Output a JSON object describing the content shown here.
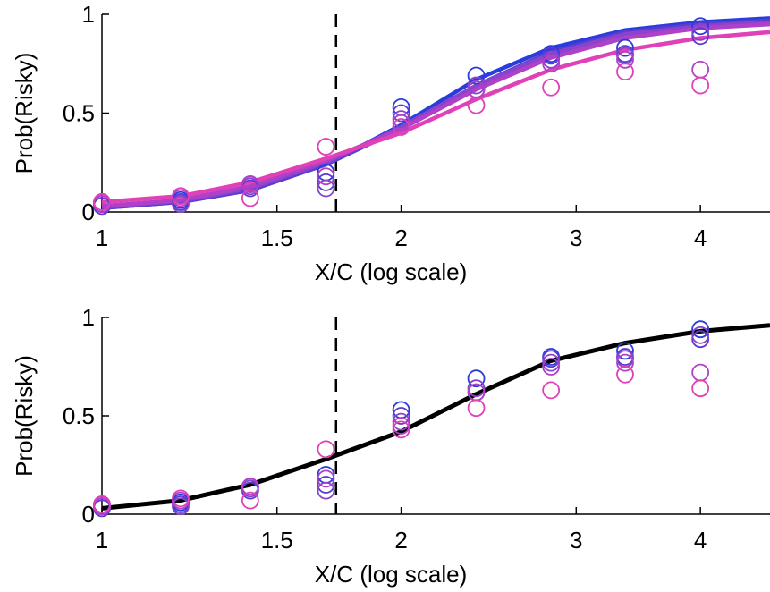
{
  "chart_data": [
    {
      "type": "scatter",
      "xlabel": "X/C (log scale)",
      "ylabel": "Prob(Risky)",
      "x_scale": "log",
      "xlim": [
        1,
        4.7
      ],
      "ylim": [
        0,
        1
      ],
      "xticks": [
        1,
        1.5,
        2,
        3,
        4
      ],
      "xtick_labels": [
        "1",
        "1.5",
        "2",
        "3",
        "4"
      ],
      "yticks": [
        0,
        0.5,
        1
      ],
      "ytick_labels": [
        "0",
        "0.5",
        "1"
      ],
      "grid": false,
      "reference_line": {
        "x": 1.72,
        "style": "dashed",
        "color": "#000000"
      },
      "series": [
        {
          "color": "#2a3cdc",
          "points": [
            [
              1,
              0.04
            ],
            [
              1.2,
              0.06
            ],
            [
              1.41,
              0.14
            ],
            [
              1.68,
              0.2
            ],
            [
              2,
              0.53
            ],
            [
              2.38,
              0.69
            ],
            [
              2.83,
              0.8
            ],
            [
              3.36,
              0.83
            ],
            [
              4,
              0.94
            ]
          ],
          "fit": [
            [
              1,
              0.02
            ],
            [
              1.2,
              0.05
            ],
            [
              1.41,
              0.11
            ],
            [
              1.68,
              0.24
            ],
            [
              2,
              0.44
            ],
            [
              2.38,
              0.67
            ],
            [
              2.83,
              0.83
            ],
            [
              3.36,
              0.92
            ],
            [
              4,
              0.96
            ],
            [
              4.7,
              0.98
            ]
          ]
        },
        {
          "color": "#5a3cd2",
          "points": [
            [
              1,
              0.03
            ],
            [
              1.2,
              0.05
            ],
            [
              1.41,
              0.12
            ],
            [
              1.68,
              0.15
            ],
            [
              2,
              0.5
            ],
            [
              2.38,
              0.62
            ],
            [
              2.83,
              0.79
            ],
            [
              3.36,
              0.8
            ],
            [
              4,
              0.89
            ]
          ],
          "fit": [
            [
              1,
              0.02
            ],
            [
              1.2,
              0.05
            ],
            [
              1.41,
              0.11
            ],
            [
              1.68,
              0.24
            ],
            [
              2,
              0.42
            ],
            [
              2.38,
              0.64
            ],
            [
              2.83,
              0.81
            ],
            [
              3.36,
              0.91
            ],
            [
              4,
              0.95
            ],
            [
              4.7,
              0.97
            ]
          ]
        },
        {
          "color": "#8844cc",
          "points": [
            [
              1,
              0.05
            ],
            [
              1.2,
              0.04
            ],
            [
              1.41,
              0.13
            ],
            [
              1.68,
              0.12
            ],
            [
              2,
              0.47
            ],
            [
              2.38,
              0.64
            ],
            [
              2.83,
              0.77
            ],
            [
              3.36,
              0.79
            ],
            [
              4,
              0.91
            ]
          ],
          "fit": [
            [
              1,
              0.025
            ],
            [
              1.2,
              0.055
            ],
            [
              1.41,
              0.12
            ],
            [
              1.68,
              0.25
            ],
            [
              2,
              0.43
            ],
            [
              2.38,
              0.64
            ],
            [
              2.83,
              0.8
            ],
            [
              3.36,
              0.9
            ],
            [
              4,
              0.94
            ],
            [
              4.7,
              0.96
            ]
          ]
        },
        {
          "color": "#b040c8",
          "points": [
            [
              1,
              0.04
            ],
            [
              1.2,
              0.07
            ],
            [
              1.41,
              0.14
            ],
            [
              1.68,
              0.18
            ],
            [
              2,
              0.45
            ],
            [
              2.38,
              0.62
            ],
            [
              2.83,
              0.75
            ],
            [
              3.36,
              0.77
            ],
            [
              4,
              0.72
            ]
          ],
          "fit": [
            [
              1,
              0.03
            ],
            [
              1.2,
              0.06
            ],
            [
              1.41,
              0.13
            ],
            [
              1.68,
              0.26
            ],
            [
              2,
              0.42
            ],
            [
              2.38,
              0.62
            ],
            [
              2.83,
              0.78
            ],
            [
              3.36,
              0.88
            ],
            [
              4,
              0.93
            ],
            [
              4.7,
              0.95
            ]
          ]
        },
        {
          "color": "#e040b8",
          "points": [
            [
              1,
              0.05
            ],
            [
              1.2,
              0.08
            ],
            [
              1.41,
              0.07
            ],
            [
              1.68,
              0.33
            ],
            [
              2,
              0.43
            ],
            [
              2.38,
              0.54
            ],
            [
              2.83,
              0.63
            ],
            [
              3.36,
              0.71
            ],
            [
              4,
              0.64
            ]
          ],
          "fit": [
            [
              1,
              0.05
            ],
            [
              1.2,
              0.08
            ],
            [
              1.41,
              0.15
            ],
            [
              1.68,
              0.27
            ],
            [
              2,
              0.4
            ],
            [
              2.38,
              0.57
            ],
            [
              2.83,
              0.72
            ],
            [
              3.36,
              0.82
            ],
            [
              4,
              0.88
            ],
            [
              4.7,
              0.91
            ]
          ]
        }
      ]
    },
    {
      "type": "scatter",
      "xlabel": "X/C (log scale)",
      "ylabel": "Prob(Risky)",
      "x_scale": "log",
      "xlim": [
        1,
        4.7
      ],
      "ylim": [
        0,
        1
      ],
      "xticks": [
        1,
        1.5,
        2,
        3,
        4
      ],
      "xtick_labels": [
        "1",
        "1.5",
        "2",
        "3",
        "4"
      ],
      "yticks": [
        0,
        0.5,
        1
      ],
      "ytick_labels": [
        "0",
        "0.5",
        "1"
      ],
      "grid": false,
      "reference_line": {
        "x": 1.72,
        "style": "dashed",
        "color": "#000000"
      },
      "pooled_fit": {
        "color": "#000000",
        "points": [
          [
            1,
            0.03
          ],
          [
            1.2,
            0.07
          ],
          [
            1.41,
            0.15
          ],
          [
            1.68,
            0.28
          ],
          [
            2,
            0.42
          ],
          [
            2.38,
            0.61
          ],
          [
            2.83,
            0.78
          ],
          [
            3.36,
            0.87
          ],
          [
            4,
            0.93
          ],
          [
            4.7,
            0.96
          ]
        ]
      },
      "series": [
        {
          "color": "#2a3cdc",
          "points": [
            [
              1,
              0.04
            ],
            [
              1.2,
              0.06
            ],
            [
              1.41,
              0.14
            ],
            [
              1.68,
              0.2
            ],
            [
              2,
              0.53
            ],
            [
              2.38,
              0.69
            ],
            [
              2.83,
              0.8
            ],
            [
              3.36,
              0.83
            ],
            [
              4,
              0.94
            ]
          ]
        },
        {
          "color": "#5a3cd2",
          "points": [
            [
              1,
              0.03
            ],
            [
              1.2,
              0.05
            ],
            [
              1.41,
              0.12
            ],
            [
              1.68,
              0.15
            ],
            [
              2,
              0.5
            ],
            [
              2.38,
              0.62
            ],
            [
              2.83,
              0.79
            ],
            [
              3.36,
              0.8
            ],
            [
              4,
              0.89
            ]
          ]
        },
        {
          "color": "#8844cc",
          "points": [
            [
              1,
              0.05
            ],
            [
              1.2,
              0.04
            ],
            [
              1.41,
              0.13
            ],
            [
              1.68,
              0.12
            ],
            [
              2,
              0.47
            ],
            [
              2.38,
              0.64
            ],
            [
              2.83,
              0.77
            ],
            [
              3.36,
              0.79
            ],
            [
              4,
              0.91
            ]
          ]
        },
        {
          "color": "#b040c8",
          "points": [
            [
              1,
              0.04
            ],
            [
              1.2,
              0.07
            ],
            [
              1.41,
              0.14
            ],
            [
              1.68,
              0.18
            ],
            [
              2,
              0.45
            ],
            [
              2.38,
              0.62
            ],
            [
              2.83,
              0.75
            ],
            [
              3.36,
              0.77
            ],
            [
              4,
              0.72
            ]
          ]
        },
        {
          "color": "#e040b8",
          "points": [
            [
              1,
              0.05
            ],
            [
              1.2,
              0.08
            ],
            [
              1.41,
              0.07
            ],
            [
              1.68,
              0.33
            ],
            [
              2,
              0.43
            ],
            [
              2.38,
              0.54
            ],
            [
              2.83,
              0.63
            ],
            [
              3.36,
              0.71
            ],
            [
              4,
              0.64
            ]
          ]
        }
      ]
    }
  ]
}
